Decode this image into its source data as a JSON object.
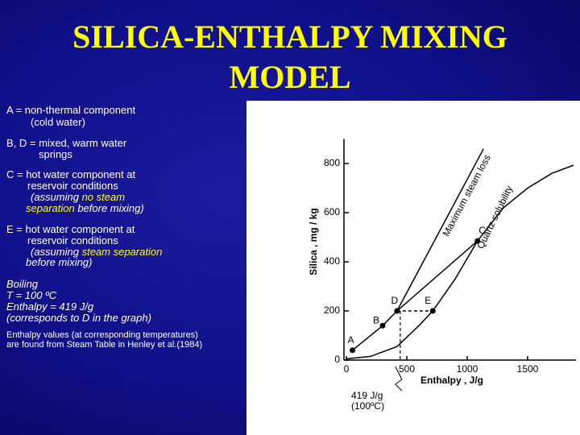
{
  "title": [
    "SILICA-ENTHALPY MIXING",
    "MODEL"
  ],
  "notes": [
    [
      "A = non-thermal component",
      "(cold water)"
    ],
    [
      "B, D = mixed, warm water",
      "springs"
    ],
    [
      "C = hot water component at",
      "reservoir conditions",
      "(assuming ",
      "no steam",
      "separation",
      " before mixing)"
    ],
    [
      "E = hot water component at",
      "reservoir conditions",
      "(assuming ",
      "steam separation",
      "before mixing)"
    ],
    [
      "Boiling",
      "T = 100 ºC",
      "Enthalpy = 419 J/g",
      "(corresponds to D in the graph)"
    ],
    [
      "Enthalpy values (at corresponding temperatures)",
      "are found from Steam Table in Henley et al.(1984)"
    ]
  ],
  "chart_data": {
    "type": "line",
    "x_label": "Enthalpy , J/g",
    "y_label": "Silica , mg / kg",
    "xlim": [
      0,
      1900
    ],
    "xticks": [
      0,
      500,
      1000,
      1500
    ],
    "ylim": [
      0,
      900
    ],
    "yticks": [
      0,
      200,
      400,
      600,
      800
    ],
    "color": "#000000",
    "points": {
      "labels": [
        "A",
        "B",
        "D",
        "E",
        "C"
      ],
      "x": [
        50,
        300,
        419,
        715,
        1085
      ],
      "y": [
        40,
        140,
        200,
        200,
        485
      ]
    },
    "curves": [
      {
        "name": "Maximum steam loss",
        "x": [
          419,
          1135
        ],
        "y": [
          200,
          860
        ]
      },
      {
        "name": "Quartz solubility",
        "x": [
          0,
          200,
          419,
          600,
          715,
          900,
          1085,
          1300,
          1500,
          1700,
          1880
        ],
        "y": [
          5,
          15,
          55,
          140,
          200,
          330,
          485,
          620,
          700,
          760,
          793
        ]
      }
    ],
    "annotations": [
      "419 J/g",
      "(100ºC)"
    ]
  }
}
